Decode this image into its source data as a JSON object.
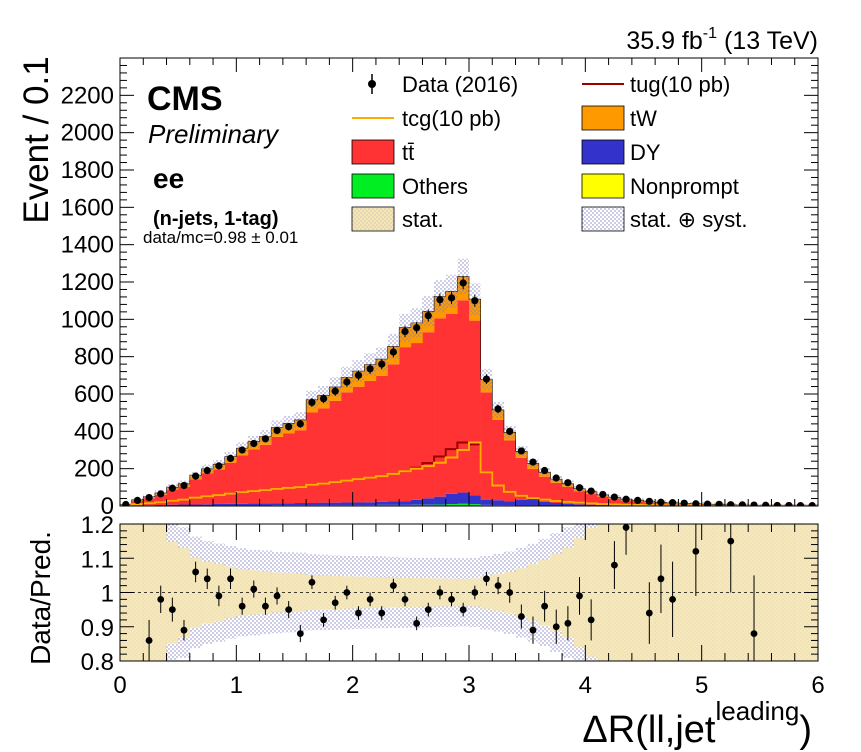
{
  "header": {
    "lumi_value": "35.9 fb",
    "lumi_exp": "-1",
    "lumi_energy": " (13 TeV)"
  },
  "labels": {
    "cms": "CMS",
    "preliminary": "Preliminary",
    "channel": "ee",
    "selection": "(n-jets, 1-tag)",
    "ratio_text": "data/mc=0.98 ± 0.01"
  },
  "legend": {
    "data": "Data (2016)",
    "tug": "tug(10 pb)",
    "tcg": "tcg(10 pb)",
    "tw": "tW",
    "ttbar": "tt̄",
    "dy": "DY",
    "others": "Others",
    "nonprompt": "Nonprompt",
    "stat": "stat.",
    "statsyst": "stat. ⊕ syst."
  },
  "colors": {
    "ttbar": "#ff3333",
    "tw": "#ff9900",
    "dy": "#3333cc",
    "others": "#00ee22",
    "nonprompt": "#ffff00",
    "tcg": "#ffaa00",
    "tug": "#990000",
    "stat": "#f5e6b3",
    "syst": "#9999cc"
  },
  "chart_data": [
    {
      "type": "histogram-stack",
      "xlabel": "ΔR(ll,jet",
      "xlabel_sup": "leading",
      "xlabel_close": ")",
      "ylabel": "Event / 0.1",
      "xlim": [
        0,
        6
      ],
      "ylim": [
        0,
        2400
      ],
      "x_ticks": [
        0,
        1,
        2,
        3,
        4,
        5,
        6
      ],
      "y_ticks": [
        0,
        200,
        400,
        600,
        800,
        1000,
        1200,
        1400,
        1600,
        1800,
        2000,
        2200
      ],
      "bin_width": 0.1,
      "bin_centers": [
        0.05,
        0.15,
        0.25,
        0.35,
        0.45,
        0.55,
        0.65,
        0.75,
        0.85,
        0.95,
        1.05,
        1.15,
        1.25,
        1.35,
        1.45,
        1.55,
        1.65,
        1.75,
        1.85,
        1.95,
        2.05,
        2.15,
        2.25,
        2.35,
        2.45,
        2.55,
        2.65,
        2.75,
        2.85,
        2.95,
        3.05,
        3.15,
        3.25,
        3.35,
        3.45,
        3.55,
        3.65,
        3.75,
        3.85,
        3.95,
        4.05,
        4.15,
        4.25,
        4.35,
        4.45,
        4.55,
        4.65,
        4.75,
        4.85,
        4.95,
        5.05,
        5.15,
        5.25,
        5.35,
        5.45,
        5.55,
        5.65,
        5.75,
        5.85,
        5.95
      ],
      "data": [
        8,
        30,
        45,
        65,
        95,
        110,
        160,
        190,
        215,
        255,
        300,
        335,
        360,
        405,
        425,
        440,
        555,
        575,
        615,
        665,
        700,
        735,
        760,
        825,
        935,
        955,
        1020,
        1105,
        1115,
        1195,
        1100,
        680,
        520,
        400,
        295,
        235,
        190,
        150,
        125,
        98,
        80,
        62,
        48,
        36,
        30,
        25,
        20,
        18,
        15,
        12,
        10,
        9,
        7,
        6,
        5,
        4,
        3,
        3,
        2,
        2
      ],
      "series": [
        {
          "name": "Nonprompt",
          "values": [
            0,
            0,
            0,
            0,
            0,
            0,
            0,
            0,
            0,
            0,
            0,
            0,
            0,
            0,
            0,
            0,
            0,
            0,
            0,
            0,
            0,
            0,
            0,
            0,
            0,
            0,
            0,
            0,
            0,
            0,
            0,
            0,
            0,
            0,
            0,
            0,
            0,
            0,
            0,
            0,
            0,
            0,
            0,
            0,
            0,
            0,
            0,
            0,
            0,
            0,
            0,
            0,
            0,
            0,
            0,
            0,
            0,
            0,
            0,
            0
          ]
        },
        {
          "name": "Others",
          "values": [
            0,
            1,
            1,
            1,
            2,
            2,
            2,
            2,
            3,
            3,
            3,
            3,
            3,
            4,
            4,
            4,
            4,
            5,
            5,
            5,
            5,
            5,
            6,
            6,
            6,
            7,
            7,
            8,
            10,
            12,
            10,
            6,
            5,
            4,
            3,
            3,
            2,
            2,
            2,
            1,
            1,
            1,
            1,
            1,
            1,
            1,
            0,
            0,
            0,
            0,
            0,
            0,
            0,
            0,
            0,
            0,
            0,
            0,
            0,
            0
          ]
        },
        {
          "name": "DY",
          "values": [
            1,
            2,
            3,
            4,
            5,
            6,
            6,
            7,
            8,
            9,
            9,
            10,
            10,
            11,
            11,
            12,
            12,
            13,
            13,
            14,
            14,
            15,
            16,
            18,
            20,
            26,
            34,
            42,
            55,
            60,
            48,
            28,
            26,
            22,
            30,
            35,
            20,
            14,
            10,
            8,
            6,
            5,
            4,
            3,
            3,
            2,
            2,
            1,
            1,
            1,
            1,
            1,
            0,
            0,
            0,
            0,
            0,
            0,
            0,
            0
          ]
        },
        {
          "name": "tt̄",
          "values": [
            6,
            24,
            38,
            55,
            80,
            95,
            135,
            165,
            185,
            220,
            260,
            290,
            315,
            355,
            375,
            390,
            485,
            505,
            545,
            590,
            620,
            650,
            675,
            735,
            825,
            840,
            890,
            955,
            965,
            1030,
            935,
            575,
            430,
            325,
            225,
            160,
            135,
            108,
            90,
            70,
            57,
            44,
            34,
            26,
            21,
            17,
            14,
            12,
            10,
            8,
            7,
            6,
            5,
            4,
            3,
            3,
            2,
            2,
            1,
            1
          ]
        },
        {
          "name": "tW",
          "values": [
            2,
            6,
            8,
            10,
            14,
            16,
            22,
            25,
            28,
            33,
            38,
            42,
            45,
            50,
            53,
            55,
            68,
            70,
            75,
            80,
            84,
            88,
            90,
            96,
            105,
            108,
            112,
            118,
            120,
            128,
            115,
            70,
            54,
            44,
            35,
            30,
            24,
            20,
            17,
            14,
            12,
            10,
            8,
            7,
            6,
            5,
            4,
            4,
            3,
            3,
            2,
            2,
            2,
            2,
            1,
            1,
            1,
            1,
            1,
            1
          ]
        }
      ],
      "tcg": [
        3,
        10,
        15,
        20,
        28,
        34,
        45,
        52,
        58,
        66,
        74,
        80,
        85,
        92,
        97,
        101,
        114,
        120,
        128,
        136,
        144,
        152,
        160,
        172,
        186,
        200,
        214,
        232,
        260,
        300,
        340,
        180,
        110,
        76,
        55,
        42,
        34,
        27,
        22,
        18,
        14,
        11,
        9,
        7,
        6,
        5,
        4,
        3,
        3,
        2,
        2,
        2,
        1,
        1,
        1,
        1,
        1,
        1,
        1,
        1
      ],
      "tug": [
        3,
        10,
        15,
        20,
        28,
        34,
        45,
        52,
        58,
        66,
        74,
        80,
        85,
        92,
        97,
        101,
        114,
        120,
        128,
        136,
        144,
        152,
        160,
        172,
        186,
        205,
        230,
        265,
        305,
        340,
        330,
        180,
        110,
        76,
        55,
        42,
        34,
        27,
        22,
        18,
        14,
        11,
        9,
        7,
        6,
        5,
        4,
        3,
        3,
        2,
        2,
        2,
        1,
        1,
        1,
        1,
        1,
        1,
        1,
        1
      ]
    },
    {
      "type": "ratio",
      "ylabel": "Data/Pred.",
      "ylim": [
        0.8,
        1.2
      ],
      "y_ticks": [
        0.8,
        0.9,
        1,
        1.1,
        1.2
      ],
      "x": [
        0.25,
        0.35,
        0.45,
        0.55,
        0.65,
        0.75,
        0.85,
        0.95,
        1.05,
        1.15,
        1.25,
        1.35,
        1.45,
        1.55,
        1.65,
        1.75,
        1.85,
        1.95,
        2.05,
        2.15,
        2.25,
        2.35,
        2.45,
        2.55,
        2.65,
        2.75,
        2.85,
        2.95,
        3.05,
        3.15,
        3.25,
        3.35,
        3.45,
        3.55,
        3.65,
        3.75,
        3.85,
        3.95,
        4.05,
        4.25,
        4.35,
        4.55,
        4.65,
        4.75,
        4.95,
        5.25,
        5.45
      ],
      "values": [
        0.86,
        0.98,
        0.95,
        0.89,
        1.06,
        1.04,
        0.99,
        1.04,
        0.96,
        1.01,
        0.96,
        0.99,
        0.95,
        0.88,
        1.03,
        0.92,
        0.97,
        1.0,
        0.94,
        0.98,
        0.94,
        1.02,
        0.98,
        0.91,
        0.95,
        1.0,
        0.98,
        0.95,
        1.0,
        1.04,
        1.02,
        1.0,
        0.93,
        0.89,
        0.96,
        0.9,
        0.91,
        0.99,
        0.92,
        1.08,
        1.19,
        0.94,
        1.04,
        0.98,
        1.12,
        1.15,
        0.88
      ],
      "errors": [
        0.06,
        0.04,
        0.035,
        0.03,
        0.03,
        0.03,
        0.03,
        0.03,
        0.025,
        0.025,
        0.025,
        0.025,
        0.025,
        0.025,
        0.02,
        0.02,
        0.02,
        0.02,
        0.02,
        0.02,
        0.02,
        0.02,
        0.02,
        0.02,
        0.02,
        0.02,
        0.02,
        0.02,
        0.02,
        0.02,
        0.025,
        0.03,
        0.035,
        0.04,
        0.045,
        0.05,
        0.05,
        0.055,
        0.06,
        0.07,
        0.08,
        0.09,
        0.1,
        0.11,
        0.13,
        0.15,
        0.17
      ]
    }
  ]
}
